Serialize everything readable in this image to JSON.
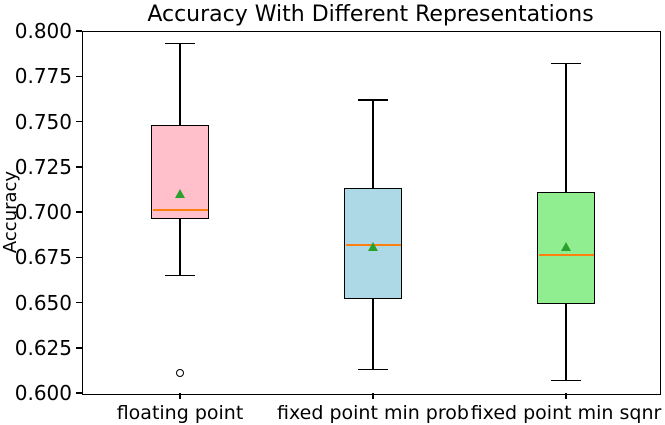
{
  "chart_data": {
    "type": "boxplot",
    "title": "Accuracy With Different Representations",
    "ylabel": "Accuracy",
    "xlabel": "",
    "ylim": [
      0.6,
      0.8
    ],
    "ytick_labels": [
      "0.800",
      "0.775",
      "0.750",
      "0.725",
      "0.700",
      "0.675",
      "0.650",
      "0.625",
      "0.600"
    ],
    "categories": [
      "floating point",
      "fixed point min prob",
      "fixed point min sqnr"
    ],
    "series": [
      {
        "name": "floating point",
        "whisker_low": 0.665,
        "q1": 0.696,
        "median": 0.701,
        "mean": 0.71,
        "q3": 0.748,
        "whisker_high": 0.793,
        "outliers": [
          0.611
        ],
        "fill_color": "#ffc0cb"
      },
      {
        "name": "fixed point min prob",
        "whisker_low": 0.613,
        "q1": 0.652,
        "median": 0.682,
        "mean": 0.681,
        "q3": 0.713,
        "whisker_high": 0.762,
        "outliers": [],
        "fill_color": "#add8e6"
      },
      {
        "name": "fixed point min sqnr",
        "whisker_low": 0.607,
        "q1": 0.649,
        "median": 0.676,
        "mean": 0.681,
        "q3": 0.711,
        "whisker_high": 0.782,
        "outliers": [],
        "fill_color": "#90ee90"
      }
    ],
    "style": {
      "median_color": "#ff7f0e",
      "mean_marker_color": "#2ca02c",
      "edge_color": "#000000",
      "background_color": "#ffffff",
      "grid": false,
      "legend": false
    }
  }
}
